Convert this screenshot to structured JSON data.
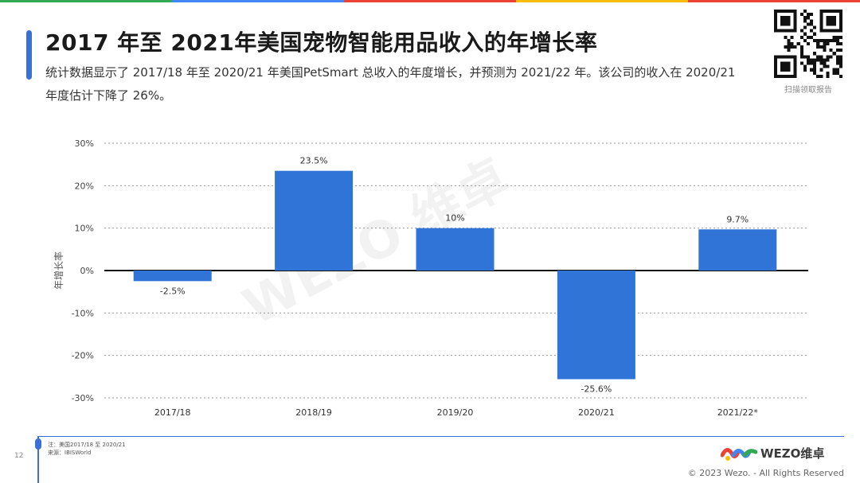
{
  "brand_colors": [
    "#4285f4",
    "#ea4335",
    "#fbbc05",
    "#34a853",
    "#3a6fd8"
  ],
  "header": {
    "title": "2017 年至 2021年美国宠物智能用品收入的年增长率",
    "description": "统计数据显示了 2017/18 年至 2020/21 年美国PetSmart 总收入的年度增长，并预测为 2021/22 年。该公司的收入在 2020/21 年度估计下降了 26%。",
    "qr_caption": "扫描领取报告"
  },
  "watermark": "WEZO 维卓",
  "chart_data": {
    "type": "bar",
    "categories": [
      "2017/18",
      "2018/19",
      "2019/20",
      "2020/21",
      "2021/22*"
    ],
    "values": [
      -2.5,
      23.5,
      10,
      -25.6,
      9.7
    ],
    "value_labels": [
      "-2.5%",
      "23.5%",
      "10%",
      "-25.6%",
      "9.7%"
    ],
    "ylabel": "年增长率",
    "xlabel": "",
    "ylim": [
      -30,
      30
    ],
    "yticks": [
      30,
      20,
      10,
      0,
      -10,
      -20,
      -30
    ],
    "ytick_labels": [
      "30%",
      "20%",
      "10%",
      "0%",
      "-10%",
      "-20%",
      "-30%"
    ],
    "bar_color": "#2f74d6",
    "grid": true
  },
  "footer": {
    "page_number": "12",
    "note_line1": "注：美国2017/18 至 2020/21",
    "note_line2": "来源：IBISWorld",
    "logo_text": "WEZO维卓",
    "copyright": "© 2023 Wezo. - All Rights Reserved"
  }
}
